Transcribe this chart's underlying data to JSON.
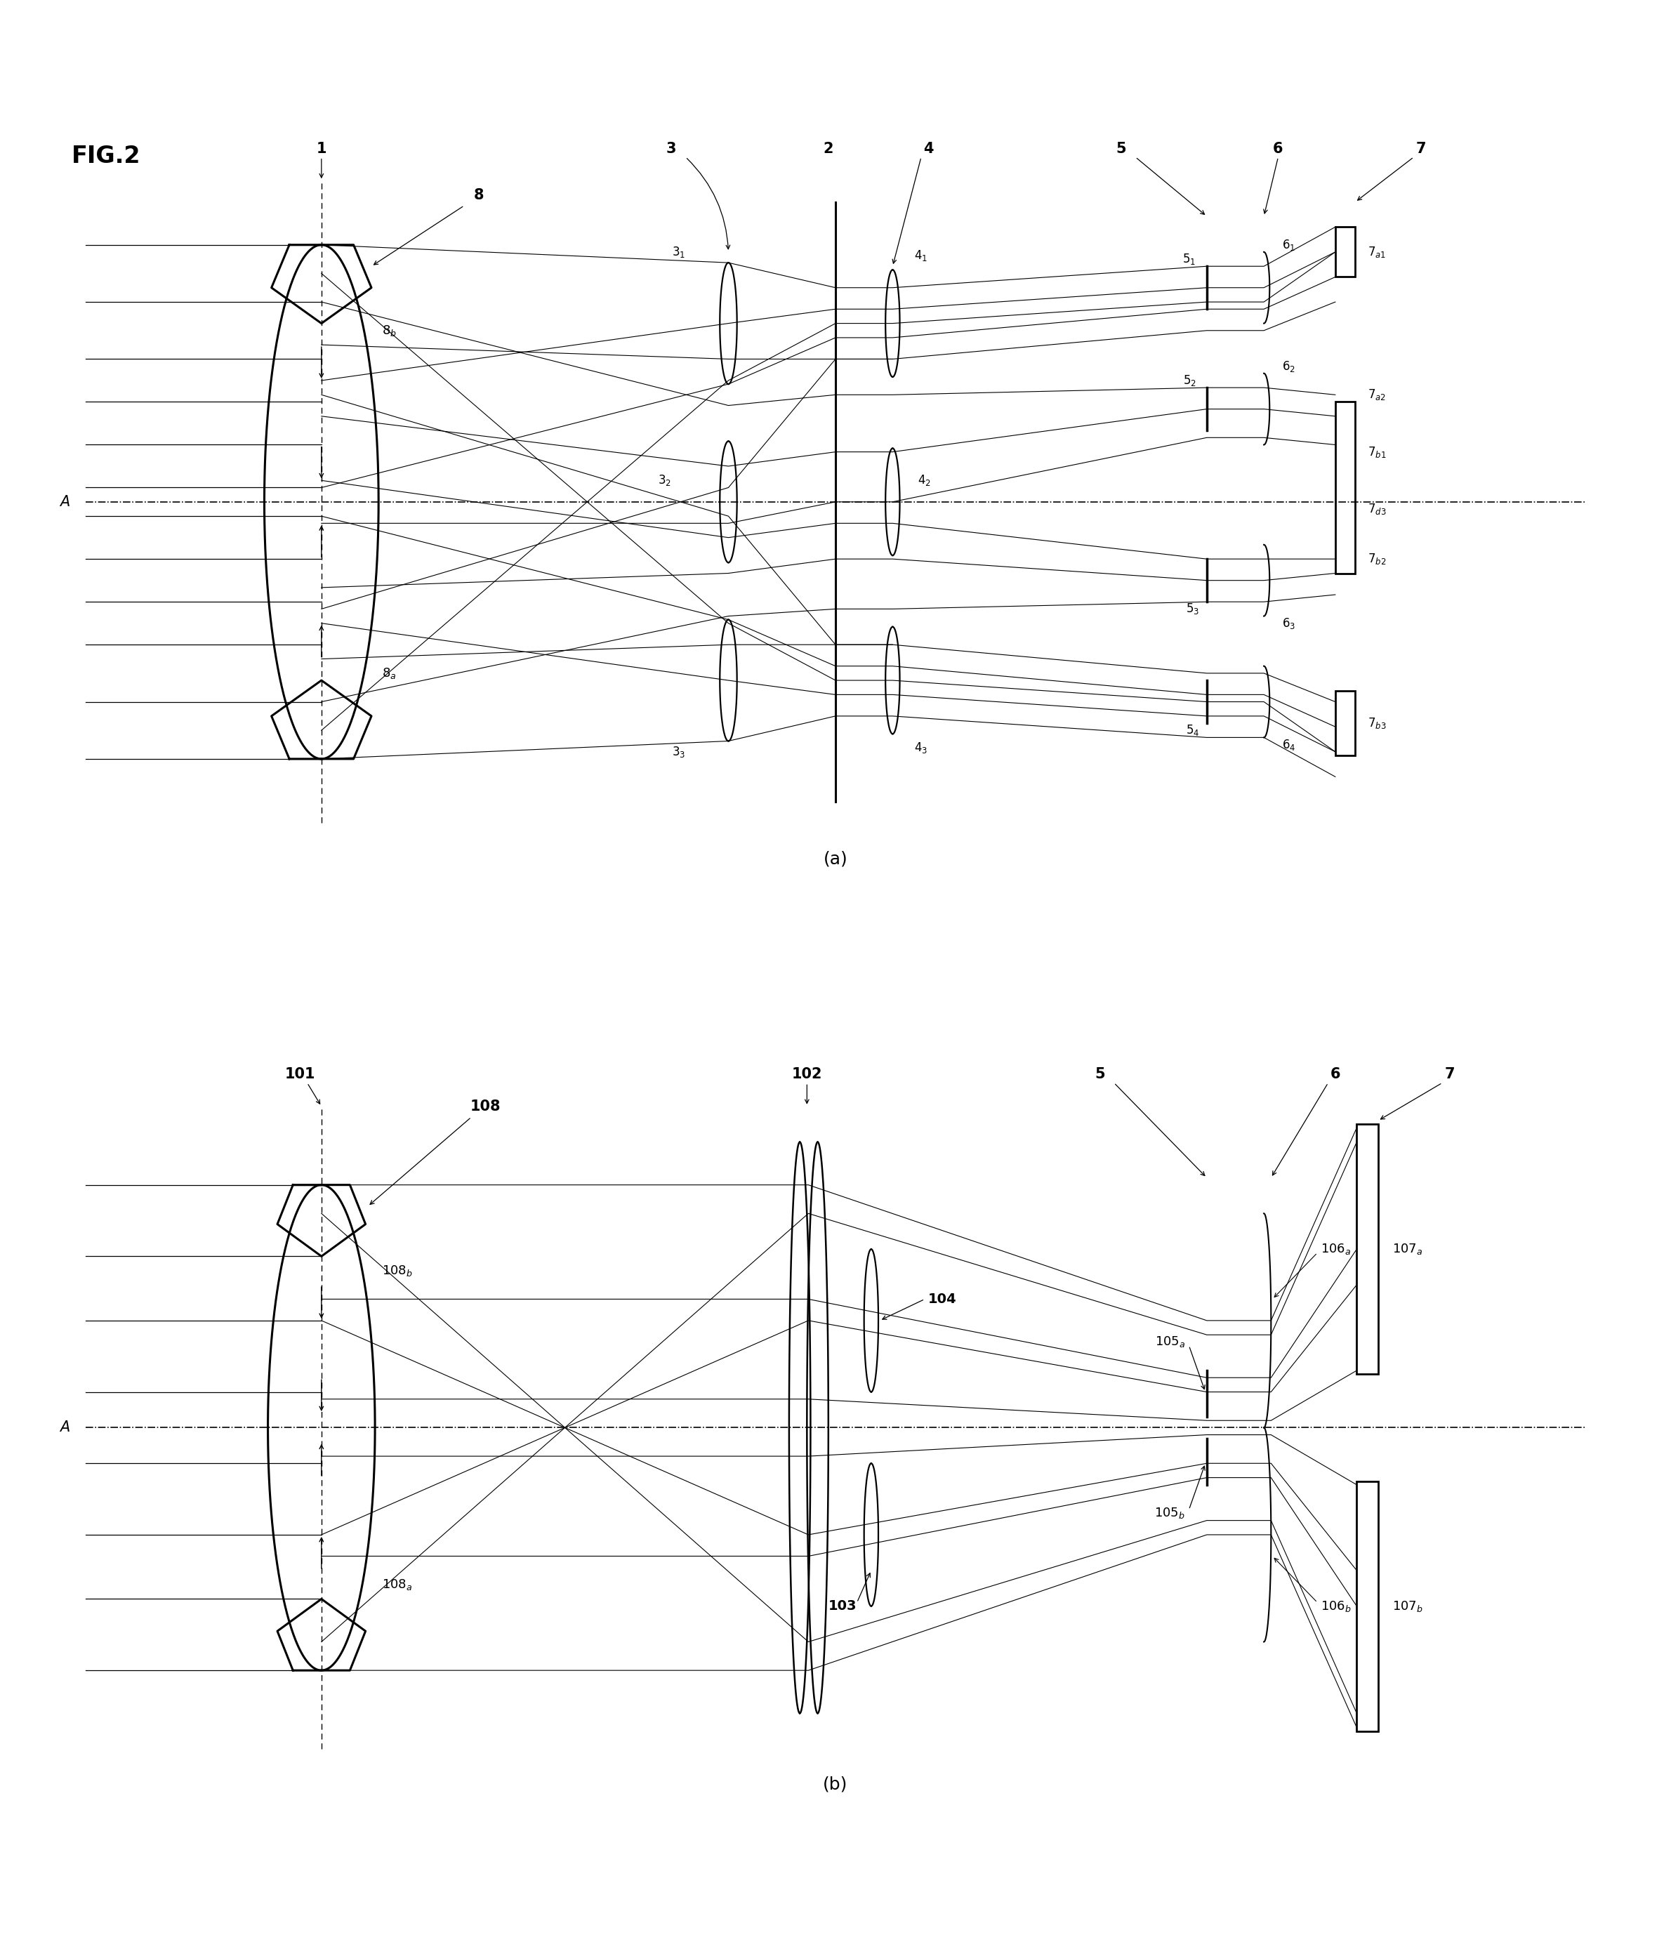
{
  "fig_title": "FIG.2",
  "bg": "#ffffff",
  "lc": "#000000",
  "sub_a": "(a)",
  "sub_b": "(b)"
}
